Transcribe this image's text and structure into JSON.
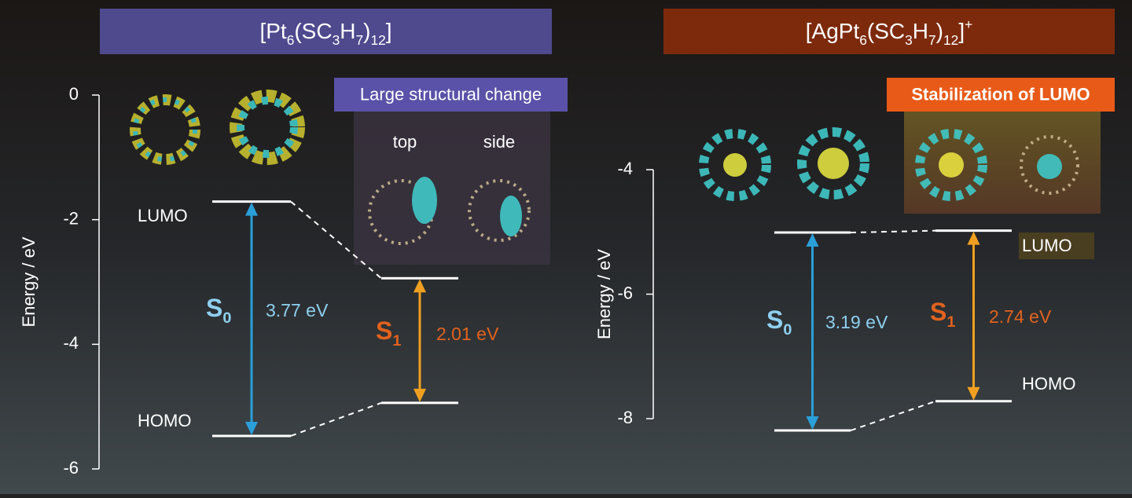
{
  "panels": [
    {
      "title": [
        {
          "text": "[Pt"
        },
        {
          "text": "6",
          "sub": true
        },
        {
          "text": "(SC"
        },
        {
          "text": "3",
          "sub": true
        },
        {
          "text": "H"
        },
        {
          "text": "7",
          "sub": true
        },
        {
          "text": ")"
        },
        {
          "text": "12",
          "sub": true
        },
        {
          "text": "]"
        }
      ],
      "title_color": "#4f4a8e",
      "axis_label": "Energy / eV",
      "ylim": [
        -6,
        0
      ],
      "yticks": [
        0,
        -2,
        -4,
        -6
      ],
      "lumo_label": "LUMO",
      "homo_label": "HOMO",
      "callout": {
        "text": "Large structural change",
        "color": "#5a52a8",
        "views": [
          "top",
          "side"
        ]
      },
      "states": [
        {
          "name": [
            {
              "text": "S"
            },
            {
              "text": "0",
              "sub": true
            }
          ],
          "gap_label": "3.77 eV",
          "upper": -1.71,
          "lower": -5.47,
          "color": "#2a9fd8",
          "label_color": "#8fd0f0"
        },
        {
          "name": [
            {
              "text": "S"
            },
            {
              "text": "1",
              "sub": true
            }
          ],
          "gap_label": "2.01 eV",
          "upper": -2.94,
          "lower": -4.94,
          "color": "#f0a020",
          "label_color": "#e2621e"
        }
      ]
    },
    {
      "title": [
        {
          "text": "[AgPt"
        },
        {
          "text": "6",
          "sub": true
        },
        {
          "text": "(SC"
        },
        {
          "text": "3",
          "sub": true
        },
        {
          "text": "H"
        },
        {
          "text": "7",
          "sub": true
        },
        {
          "text": ")"
        },
        {
          "text": "12",
          "sub": true
        },
        {
          "text": "]"
        },
        {
          "text": "+",
          "sup": true
        }
      ],
      "title_color": "#7d2a0c",
      "axis_label": "Energy / eV",
      "ylim": [
        -8,
        -4
      ],
      "yticks": [
        -4,
        -6,
        -8
      ],
      "lumo_label": "LUMO",
      "homo_label": "HOMO",
      "callout": {
        "text": "Stabilization of LUMO",
        "color": "#e85a18",
        "views": []
      },
      "states": [
        {
          "name": [
            {
              "text": "S"
            },
            {
              "text": "0",
              "sub": true
            }
          ],
          "gap_label": "3.19 eV",
          "upper": -5.01,
          "lower": -8.19,
          "color": "#2a9fd8",
          "label_color": "#8fd0f0"
        },
        {
          "name": [
            {
              "text": "S"
            },
            {
              "text": "1",
              "sub": true
            }
          ],
          "gap_label": "2.74 eV",
          "upper": -4.98,
          "lower": -7.72,
          "color": "#f0a020",
          "label_color": "#e2621e"
        }
      ]
    }
  ]
}
